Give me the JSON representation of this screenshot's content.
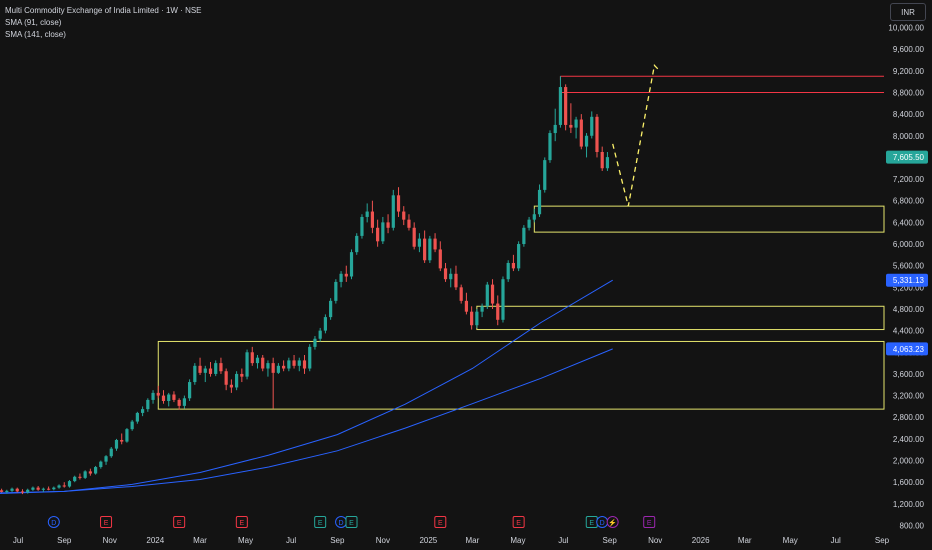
{
  "header": {
    "title": "Multi Commodity Exchange of India Limited · 1W · NSE",
    "sma1": "SMA (91, close)",
    "sma2": "SMA (141, close)",
    "currency": "INR"
  },
  "colors": {
    "background": "#131313",
    "up": "#26a69a",
    "down": "#ef5350",
    "sma": "#2962ff",
    "zone": "#e5e56d",
    "resistance": "#f23645",
    "projection": "#fcf16a",
    "axis_text": "#d1d4dc"
  },
  "chart_data": {
    "type": "candlestick",
    "title": "Multi Commodity Exchange of India Limited · 1W · NSE",
    "y_axis": {
      "ticks": [
        800,
        1200,
        1600,
        2000,
        2400,
        2800,
        3200,
        3600,
        4000,
        4400,
        4800,
        5200,
        5600,
        6000,
        6400,
        6800,
        7200,
        7600,
        8000,
        8400,
        8800,
        9200,
        9600,
        10000
      ],
      "tick_labels": [
        "800.00",
        "1,200.00",
        "1,600.00",
        "2,000.00",
        "2,400.00",
        "2,800.00",
        "3,200.00",
        "3,600.00",
        "4,000.00",
        "4,400.00",
        "4,800.00",
        "5,200.00",
        "5,600.00",
        "6,000.00",
        "6,400.00",
        "6,800.00",
        "7,200.00",
        "7,600.00",
        "8,000.00",
        "8,400.00",
        "8,800.00",
        "9,200.00",
        "9,600.00",
        "10,000.00"
      ],
      "range": [
        800,
        10000
      ]
    },
    "x_axis": {
      "tick_labels": [
        "Jul",
        "Sep",
        "Nov",
        "2024",
        "Mar",
        "May",
        "Jul",
        "Sep",
        "Nov",
        "2025",
        "Mar",
        "May",
        "Jul",
        "Sep",
        "Nov",
        "2026",
        "Mar",
        "May",
        "Jul",
        "Sep"
      ],
      "tick_dates": [
        "2023-07-01",
        "2023-09-01",
        "2023-11-01",
        "2024-01-01",
        "2024-03-01",
        "2024-05-01",
        "2024-07-01",
        "2024-09-01",
        "2024-11-01",
        "2025-01-01",
        "2025-03-01",
        "2025-05-01",
        "2025-07-01",
        "2025-09-01",
        "2025-11-01",
        "2026-01-01",
        "2026-03-01",
        "2026-05-01",
        "2026-07-01",
        "2026-09-01"
      ]
    },
    "price_tags": [
      {
        "value": 7605.5,
        "label": "7,605.50",
        "color": "#26a69a"
      },
      {
        "value": 5331.13,
        "label": "5,331.13",
        "color": "#2962ff"
      },
      {
        "value": 4063.23,
        "label": "4,063.23",
        "color": "#2962ff"
      }
    ],
    "events": [
      {
        "letter": "D",
        "date": "2023-08-18",
        "color": "#2962ff",
        "shape": "circle"
      },
      {
        "letter": "E",
        "date": "2023-10-27",
        "color": "#f23645",
        "shape": "square"
      },
      {
        "letter": "E",
        "date": "2024-02-02",
        "color": "#f23645",
        "shape": "square"
      },
      {
        "letter": "E",
        "date": "2024-04-26",
        "color": "#f23645",
        "shape": "square"
      },
      {
        "letter": "E",
        "date": "2024-08-09",
        "color": "#26a69a",
        "shape": "square"
      },
      {
        "letter": "D",
        "date": "2024-09-06",
        "color": "#2962ff",
        "shape": "circle"
      },
      {
        "letter": "E",
        "date": "2024-09-20",
        "color": "#26a69a",
        "shape": "square"
      },
      {
        "letter": "E",
        "date": "2025-01-17",
        "color": "#f23645",
        "shape": "square"
      },
      {
        "letter": "E",
        "date": "2025-05-02",
        "color": "#f23645",
        "shape": "square"
      },
      {
        "letter": "E",
        "date": "2025-08-08",
        "color": "#26a69a",
        "shape": "square"
      },
      {
        "letter": "D",
        "date": "2025-08-22",
        "color": "#2962ff",
        "shape": "circle"
      },
      {
        "letter": "⚡",
        "date": "2025-09-05",
        "color": "#9c27b0",
        "shape": "circle"
      },
      {
        "letter": "E",
        "date": "2025-10-24",
        "color": "#9c27b0",
        "shape": "square"
      }
    ],
    "candles": [
      [
        "2023-06-02",
        1430,
        1470,
        1400,
        1450
      ],
      [
        "2023-06-09",
        1450,
        1480,
        1410,
        1420
      ],
      [
        "2023-06-16",
        1420,
        1460,
        1390,
        1440
      ],
      [
        "2023-06-23",
        1440,
        1500,
        1420,
        1480
      ],
      [
        "2023-06-30",
        1480,
        1500,
        1410,
        1430
      ],
      [
        "2023-07-07",
        1430,
        1470,
        1380,
        1410
      ],
      [
        "2023-07-14",
        1410,
        1480,
        1390,
        1460
      ],
      [
        "2023-07-21",
        1460,
        1520,
        1440,
        1500
      ],
      [
        "2023-07-28",
        1500,
        1530,
        1440,
        1460
      ],
      [
        "2023-08-04",
        1460,
        1500,
        1420,
        1480
      ],
      [
        "2023-08-11",
        1480,
        1520,
        1450,
        1470
      ],
      [
        "2023-08-18",
        1470,
        1520,
        1450,
        1500
      ],
      [
        "2023-08-25",
        1500,
        1560,
        1480,
        1540
      ],
      [
        "2023-09-01",
        1540,
        1600,
        1500,
        1520
      ],
      [
        "2023-09-08",
        1520,
        1640,
        1500,
        1620
      ],
      [
        "2023-09-15",
        1620,
        1720,
        1600,
        1700
      ],
      [
        "2023-09-22",
        1700,
        1760,
        1650,
        1680
      ],
      [
        "2023-09-29",
        1680,
        1820,
        1660,
        1800
      ],
      [
        "2023-10-06",
        1800,
        1850,
        1720,
        1760
      ],
      [
        "2023-10-13",
        1760,
        1900,
        1740,
        1880
      ],
      [
        "2023-10-20",
        1880,
        2000,
        1850,
        1980
      ],
      [
        "2023-10-27",
        1980,
        2100,
        1920,
        2080
      ],
      [
        "2023-11-03",
        2080,
        2250,
        2050,
        2220
      ],
      [
        "2023-11-10",
        2220,
        2400,
        2180,
        2380
      ],
      [
        "2023-11-17",
        2380,
        2500,
        2300,
        2350
      ],
      [
        "2023-11-24",
        2350,
        2600,
        2330,
        2580
      ],
      [
        "2023-12-01",
        2580,
        2750,
        2550,
        2720
      ],
      [
        "2023-12-08",
        2720,
        2900,
        2680,
        2880
      ],
      [
        "2023-12-15",
        2880,
        3000,
        2820,
        2950
      ],
      [
        "2023-12-22",
        2950,
        3150,
        2900,
        3120
      ],
      [
        "2023-12-29",
        3120,
        3300,
        3050,
        3250
      ],
      [
        "2024-01-05",
        3250,
        3380,
        3150,
        3200
      ],
      [
        "2024-01-12",
        3200,
        3300,
        3050,
        3100
      ],
      [
        "2024-01-19",
        3100,
        3250,
        3000,
        3220
      ],
      [
        "2024-01-26",
        3220,
        3280,
        3080,
        3120
      ],
      [
        "2024-02-02",
        3120,
        3150,
        2940,
        3010
      ],
      [
        "2024-02-09",
        3010,
        3200,
        2960,
        3150
      ],
      [
        "2024-02-16",
        3150,
        3500,
        3100,
        3450
      ],
      [
        "2024-02-23",
        3450,
        3800,
        3400,
        3750
      ],
      [
        "2024-03-01",
        3750,
        3900,
        3580,
        3620
      ],
      [
        "2024-03-08",
        3620,
        3750,
        3450,
        3700
      ],
      [
        "2024-03-15",
        3700,
        3820,
        3550,
        3600
      ],
      [
        "2024-03-22",
        3600,
        3850,
        3560,
        3800
      ],
      [
        "2024-03-29",
        3800,
        3900,
        3600,
        3650
      ],
      [
        "2024-04-05",
        3650,
        3700,
        3300,
        3400
      ],
      [
        "2024-04-12",
        3400,
        3500,
        3250,
        3350
      ],
      [
        "2024-04-19",
        3350,
        3650,
        3300,
        3600
      ],
      [
        "2024-04-26",
        3600,
        3700,
        3450,
        3550
      ],
      [
        "2024-05-03",
        3550,
        4050,
        3500,
        4000
      ],
      [
        "2024-05-10",
        4000,
        4100,
        3750,
        3800
      ],
      [
        "2024-05-17",
        3800,
        3950,
        3700,
        3900
      ],
      [
        "2024-05-24",
        3900,
        3950,
        3650,
        3700
      ],
      [
        "2024-05-31",
        3700,
        3850,
        3550,
        3800
      ],
      [
        "2024-06-07",
        3800,
        3900,
        2960,
        3620
      ],
      [
        "2024-06-14",
        3620,
        3800,
        3600,
        3750
      ],
      [
        "2024-06-21",
        3750,
        3850,
        3650,
        3700
      ],
      [
        "2024-06-28",
        3700,
        3900,
        3650,
        3850
      ],
      [
        "2024-07-05",
        3850,
        3950,
        3700,
        3750
      ],
      [
        "2024-07-12",
        3750,
        3900,
        3650,
        3850
      ],
      [
        "2024-07-19",
        3850,
        3950,
        3600,
        3700
      ],
      [
        "2024-07-26",
        3700,
        4150,
        3650,
        4100
      ],
      [
        "2024-08-02",
        4100,
        4300,
        4050,
        4250
      ],
      [
        "2024-08-09",
        4250,
        4450,
        4200,
        4400
      ],
      [
        "2024-08-16",
        4400,
        4700,
        4350,
        4650
      ],
      [
        "2024-08-23",
        4650,
        5000,
        4600,
        4950
      ],
      [
        "2024-08-30",
        4950,
        5350,
        4900,
        5300
      ],
      [
        "2024-09-06",
        5300,
        5500,
        5200,
        5450
      ],
      [
        "2024-09-13",
        5450,
        5600,
        5300,
        5400
      ],
      [
        "2024-09-20",
        5400,
        5900,
        5350,
        5850
      ],
      [
        "2024-09-27",
        5850,
        6200,
        5800,
        6150
      ],
      [
        "2024-10-04",
        6150,
        6550,
        6100,
        6500
      ],
      [
        "2024-10-11",
        6500,
        6750,
        6400,
        6600
      ],
      [
        "2024-10-18",
        6600,
        6800,
        6200,
        6300
      ],
      [
        "2024-10-25",
        6300,
        6450,
        5950,
        6050
      ],
      [
        "2024-11-01",
        6050,
        6500,
        6000,
        6400
      ],
      [
        "2024-11-08",
        6400,
        6550,
        6200,
        6300
      ],
      [
        "2024-11-15",
        6300,
        7000,
        6250,
        6900
      ],
      [
        "2024-11-22",
        6900,
        7050,
        6500,
        6600
      ],
      [
        "2024-11-29",
        6600,
        6700,
        6350,
        6450
      ],
      [
        "2024-12-06",
        6450,
        6550,
        6250,
        6300
      ],
      [
        "2024-12-13",
        6300,
        6400,
        5900,
        5950
      ],
      [
        "2024-12-20",
        5950,
        6200,
        5850,
        6100
      ],
      [
        "2024-12-27",
        6100,
        6250,
        5650,
        5700
      ],
      [
        "2025-01-03",
        5700,
        6150,
        5650,
        6100
      ],
      [
        "2025-01-10",
        6100,
        6200,
        5850,
        5900
      ],
      [
        "2025-01-17",
        5900,
        6050,
        5500,
        5550
      ],
      [
        "2025-01-24",
        5550,
        5650,
        5300,
        5350
      ],
      [
        "2025-01-31",
        5350,
        5550,
        5200,
        5450
      ],
      [
        "2025-02-07",
        5450,
        5600,
        5150,
        5200
      ],
      [
        "2025-02-14",
        5200,
        5250,
        4900,
        4950
      ],
      [
        "2025-02-21",
        4950,
        5100,
        4700,
        4750
      ],
      [
        "2025-02-28",
        4750,
        4850,
        4420,
        4500
      ],
      [
        "2025-03-07",
        4500,
        4800,
        4450,
        4750
      ],
      [
        "2025-03-14",
        4750,
        4900,
        4650,
        4850
      ],
      [
        "2025-03-21",
        4850,
        5300,
        4800,
        5250
      ],
      [
        "2025-03-28",
        5250,
        5350,
        4800,
        4900
      ],
      [
        "2025-04-04",
        4900,
        5050,
        4500,
        4600
      ],
      [
        "2025-04-11",
        4600,
        5400,
        4550,
        5350
      ],
      [
        "2025-04-18",
        5350,
        5700,
        5300,
        5650
      ],
      [
        "2025-04-25",
        5650,
        5800,
        5500,
        5550
      ],
      [
        "2025-05-02",
        5550,
        6050,
        5500,
        6000
      ],
      [
        "2025-05-09",
        6000,
        6350,
        5950,
        6300
      ],
      [
        "2025-05-16",
        6300,
        6500,
        6250,
        6450
      ],
      [
        "2025-05-23",
        6450,
        6650,
        6400,
        6550
      ],
      [
        "2025-05-30",
        6550,
        7100,
        6500,
        7000
      ],
      [
        "2025-06-06",
        7000,
        7600,
        6950,
        7550
      ],
      [
        "2025-06-13",
        7550,
        8100,
        7500,
        8050
      ],
      [
        "2025-06-20",
        8050,
        8500,
        7900,
        8200
      ],
      [
        "2025-06-27",
        8200,
        9100,
        8150,
        8900
      ],
      [
        "2025-07-04",
        8900,
        8950,
        8100,
        8200
      ],
      [
        "2025-07-11",
        8200,
        8600,
        8050,
        8150
      ],
      [
        "2025-07-18",
        8150,
        8350,
        7950,
        8300
      ],
      [
        "2025-07-25",
        8300,
        8400,
        7750,
        7800
      ],
      [
        "2025-08-01",
        7800,
        8050,
        7600,
        8000
      ],
      [
        "2025-08-08",
        8000,
        8450,
        7950,
        8350
      ],
      [
        "2025-08-15",
        8350,
        8400,
        7600,
        7700
      ],
      [
        "2025-08-22",
        7700,
        7800,
        7350,
        7400
      ],
      [
        "2025-08-29",
        7400,
        7700,
        7350,
        7605.5
      ]
    ],
    "sma_91": [
      [
        "2023-06-02",
        1390
      ],
      [
        "2023-09-01",
        1430
      ],
      [
        "2023-12-01",
        1560
      ],
      [
        "2024-03-01",
        1780
      ],
      [
        "2024-06-01",
        2100
      ],
      [
        "2024-09-01",
        2480
      ],
      [
        "2024-12-01",
        3040
      ],
      [
        "2025-03-01",
        3700
      ],
      [
        "2025-06-01",
        4550
      ],
      [
        "2025-09-05",
        5331.13
      ]
    ],
    "sma_141": [
      [
        "2023-06-02",
        1400
      ],
      [
        "2023-09-01",
        1430
      ],
      [
        "2023-12-01",
        1520
      ],
      [
        "2024-03-01",
        1650
      ],
      [
        "2024-06-01",
        1880
      ],
      [
        "2024-09-01",
        2180
      ],
      [
        "2024-12-01",
        2600
      ],
      [
        "2025-03-01",
        3050
      ],
      [
        "2025-06-01",
        3520
      ],
      [
        "2025-09-05",
        4063.23
      ]
    ],
    "zones": [
      {
        "date_from": "2024-01-05",
        "date_to": "2026-11-20",
        "y_from": 2950,
        "y_to": 4200,
        "color": "#e5e56d"
      },
      {
        "date_from": "2025-03-07",
        "date_to": "2026-11-20",
        "y_from": 4420,
        "y_to": 4850,
        "color": "#e5e56d"
      },
      {
        "date_from": "2025-05-23",
        "date_to": "2026-11-20",
        "y_from": 6220,
        "y_to": 6700,
        "color": "#e5e56d"
      }
    ],
    "resistance_lines": [
      {
        "date_from": "2025-06-27",
        "date_to": "2026-11-20",
        "y": 9100,
        "color": "#f23645"
      },
      {
        "date_from": "2025-06-27",
        "date_to": "2026-11-20",
        "y": 8800,
        "color": "#f23645"
      }
    ],
    "projection": [
      [
        "2025-09-05",
        7850
      ],
      [
        "2025-09-26",
        6700
      ],
      [
        "2025-10-31",
        9300
      ],
      [
        "2025-11-07",
        9200
      ]
    ]
  }
}
